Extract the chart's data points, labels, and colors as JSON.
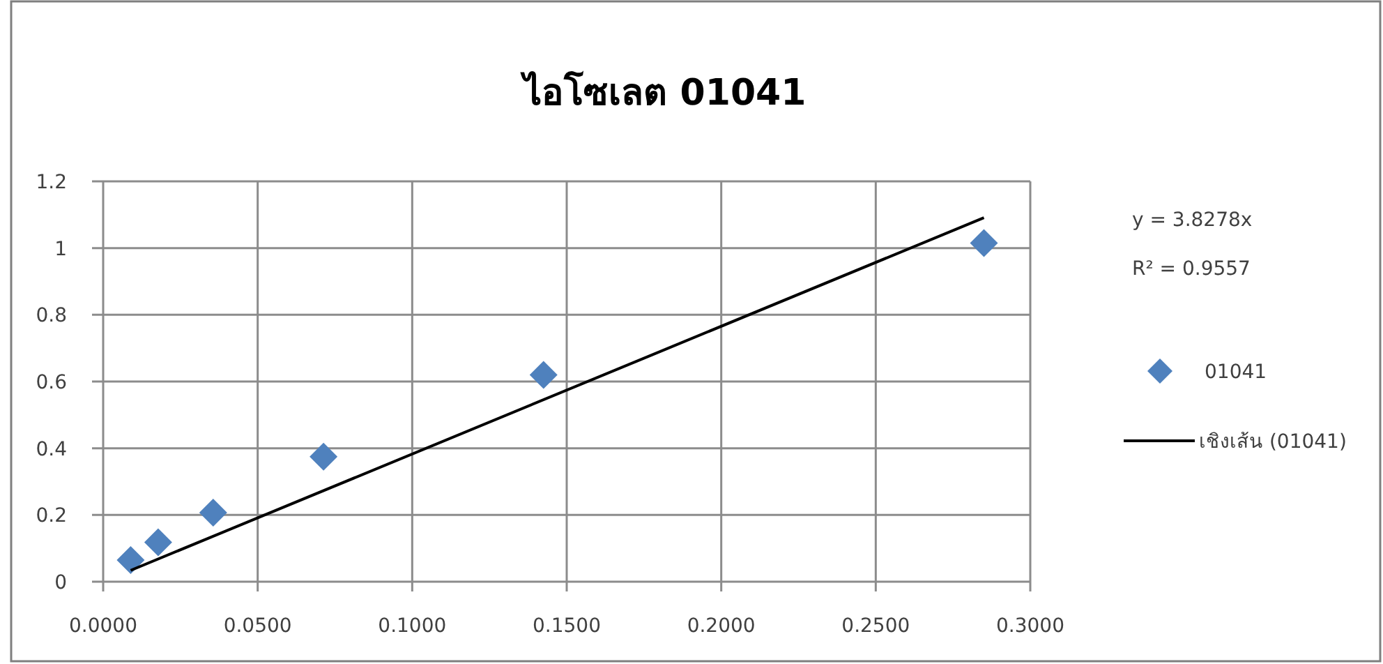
{
  "chart_data": {
    "type": "scatter",
    "title": "ไอโซเลต 01041",
    "series": [
      {
        "name": "01041",
        "color": "#4f81bd",
        "marker": "diamond",
        "x": [
          0.0089,
          0.0178,
          0.0356,
          0.0713,
          0.1425,
          0.285
        ],
        "values": [
          0.065,
          0.118,
          0.207,
          0.375,
          0.62,
          1.015
        ]
      },
      {
        "name": "เชิงเส้น (01041)",
        "type": "line",
        "color": "#000000",
        "line_style": "solid",
        "x": [
          0.0089,
          0.285
        ],
        "values": [
          0.034,
          1.091
        ]
      }
    ],
    "annotations": [
      "y = 3.8278x",
      "R² = 0.9557"
    ],
    "xlim": [
      0,
      0.3
    ],
    "ylim": [
      0,
      1.2
    ],
    "xticks": [
      {
        "value": 0,
        "label": "0.0000"
      },
      {
        "value": 0.05,
        "label": "0.0500"
      },
      {
        "value": 0.1,
        "label": "0.1000"
      },
      {
        "value": 0.15,
        "label": "0.1500"
      },
      {
        "value": 0.2,
        "label": "0.2000"
      },
      {
        "value": 0.25,
        "label": "0.2500"
      },
      {
        "value": 0.3,
        "label": "0.3000"
      }
    ],
    "yticks": [
      0,
      0.2,
      0.4,
      0.6,
      0.8,
      1,
      1.2
    ],
    "grid": true,
    "legend": "right"
  }
}
